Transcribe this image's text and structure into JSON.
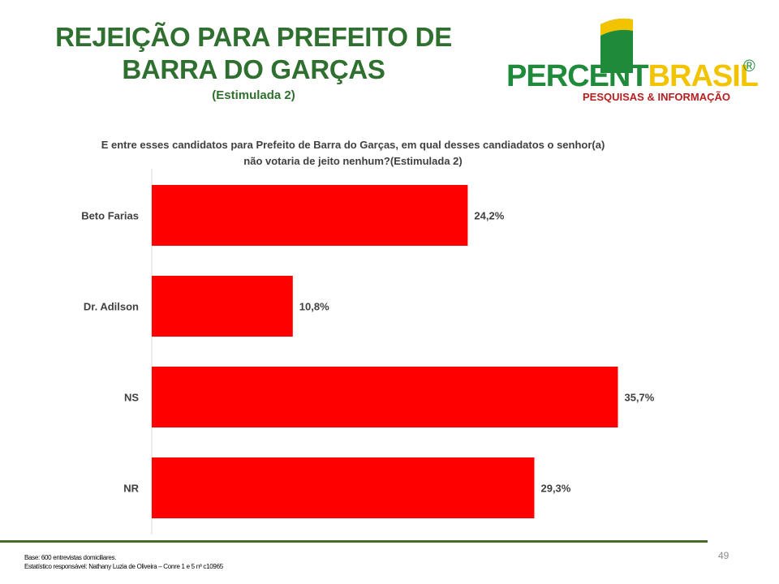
{
  "header": {
    "title_line1": "REJEIÇÃO PARA PREFEITO DE",
    "title_line2": "BARRA DO GARÇAS",
    "subtitle": "(Estimulada 2)"
  },
  "logo": {
    "word1": "PERCENT",
    "word2": "BRASIL",
    "registered": "®",
    "tagline": "PESQUISAS & INFORMAÇÃO",
    "colors": {
      "green": "#1e8a3a",
      "yellow": "#f2c400",
      "tagline": "#b51f1f"
    }
  },
  "question": {
    "line1": "E entre esses candidatos para Prefeito de Barra do Garças, em qual desses candiadatos o senhor(a)",
    "line2": "não votaria de jeito nenhum?(Estimulada 2)"
  },
  "chart_data": {
    "type": "bar",
    "orientation": "horizontal",
    "categories": [
      "Beto Farias",
      "Dr. Adilson",
      "NS",
      "NR"
    ],
    "values": [
      24.2,
      10.8,
      35.7,
      29.3
    ],
    "value_labels": [
      "24,2%",
      "10,8%",
      "35,7%",
      "29,3%"
    ],
    "xlim": [
      0,
      43.5
    ],
    "bar_color": "#ff0000",
    "grid": false,
    "legend": "none"
  },
  "footer": {
    "base": "Base: 600 entrevistas domiciliares.",
    "statistician": "Estatístico responsável: Nathany Luzia de Oliveira – Conre 1 e 5 nº c10965",
    "page_number": "49"
  }
}
